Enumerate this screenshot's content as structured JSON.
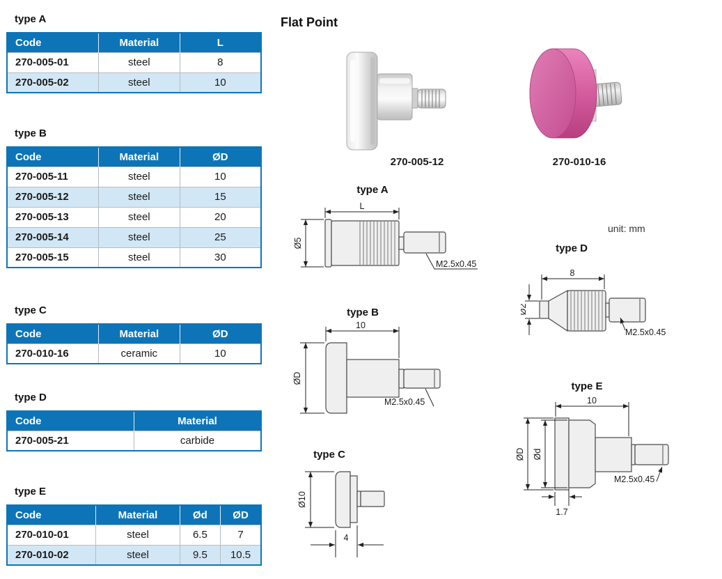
{
  "page": {
    "title": "Flat Point",
    "unit_note": "unit: mm"
  },
  "photos": [
    {
      "label": "270-005-12"
    },
    {
      "label": "270-010-16"
    }
  ],
  "tables": [
    {
      "title": "type A",
      "headers": [
        "Code",
        "Material",
        "L"
      ],
      "rows": [
        [
          "270-005-01",
          "steel",
          "8"
        ],
        [
          "270-005-02",
          "steel",
          "10"
        ]
      ]
    },
    {
      "title": "type B",
      "headers": [
        "Code",
        "Material",
        "ØD"
      ],
      "rows": [
        [
          "270-005-11",
          "steel",
          "10"
        ],
        [
          "270-005-12",
          "steel",
          "15"
        ],
        [
          "270-005-13",
          "steel",
          "20"
        ],
        [
          "270-005-14",
          "steel",
          "25"
        ],
        [
          "270-005-15",
          "steel",
          "30"
        ]
      ]
    },
    {
      "title": "type C",
      "headers": [
        "Code",
        "Material",
        "ØD"
      ],
      "rows": [
        [
          "270-010-16",
          "ceramic",
          "10"
        ]
      ]
    },
    {
      "title": "type D",
      "headers": [
        "Code",
        "Material"
      ],
      "rows": [
        [
          "270-005-21",
          "carbide"
        ]
      ]
    },
    {
      "title": "type E",
      "headers": [
        "Code",
        "Material",
        "Ød",
        "ØD"
      ],
      "rows": [
        [
          "270-010-01",
          "steel",
          "6.5",
          "7"
        ],
        [
          "270-010-02",
          "steel",
          "9.5",
          "10.5"
        ]
      ]
    }
  ],
  "drawings": {
    "typeA": {
      "title": "type A",
      "dim_length": "L",
      "dim_diameter": "Ø5",
      "thread": "M2.5x0.45"
    },
    "typeB": {
      "title": "type B",
      "dim_length": "10",
      "dim_diameter": "ØD",
      "thread": "M2.5x0.45"
    },
    "typeC": {
      "title": "type C",
      "dim_diameter": "Ø10",
      "dim_width": "4"
    },
    "typeD": {
      "title": "type D",
      "dim_length": "8",
      "dim_diameter": "Ø2",
      "thread": "M2.5x0.45"
    },
    "typeE": {
      "title": "type E",
      "dim_length": "10",
      "dim_outer_diameter": "ØD",
      "dim_inner_diameter": "Ød",
      "dim_thickness": "1.7",
      "thread": "M2.5x0.45"
    }
  },
  "colors": {
    "header_blue": "#0e74b8",
    "row_alt": "#d2e7f5",
    "ceramic_pink": "#cb4f95"
  }
}
